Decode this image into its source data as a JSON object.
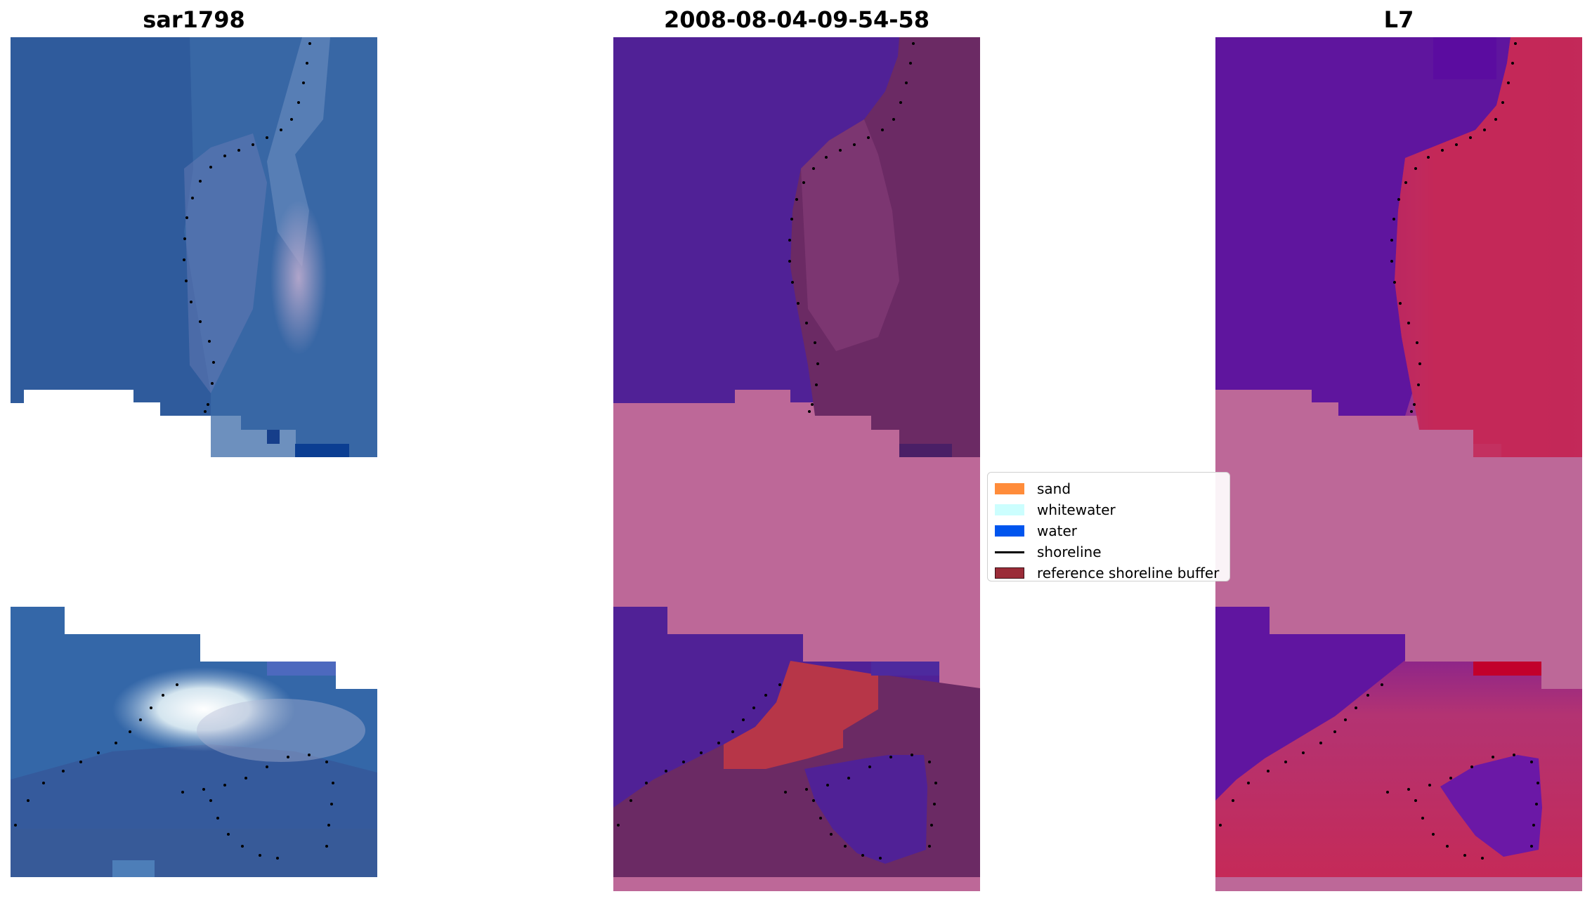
{
  "panels": [
    {
      "title": "sar1798"
    },
    {
      "title": "2008-08-04-09-54-58"
    },
    {
      "title": "L7"
    }
  ],
  "legend": {
    "items": [
      {
        "label": "sand",
        "color": "#ff8c3a",
        "kind": "patch"
      },
      {
        "label": "whitewater",
        "color": "#ccfefe",
        "kind": "patch"
      },
      {
        "label": "water",
        "color": "#0055ee",
        "kind": "patch"
      },
      {
        "label": "shoreline",
        "color": "#000000",
        "kind": "line"
      },
      {
        "label": "reference shoreline buffer",
        "color": "#9b2c38",
        "kind": "patch"
      }
    ]
  },
  "colors": {
    "rgb_water": "#2f5f9e",
    "class_water": "#502196",
    "class_land": "#6b2a64",
    "class_buffer_band": "#bd6898",
    "class_sand_red": "#b73648",
    "mndwi_water": "#5c139e",
    "mndwi_land": "#c62858"
  }
}
